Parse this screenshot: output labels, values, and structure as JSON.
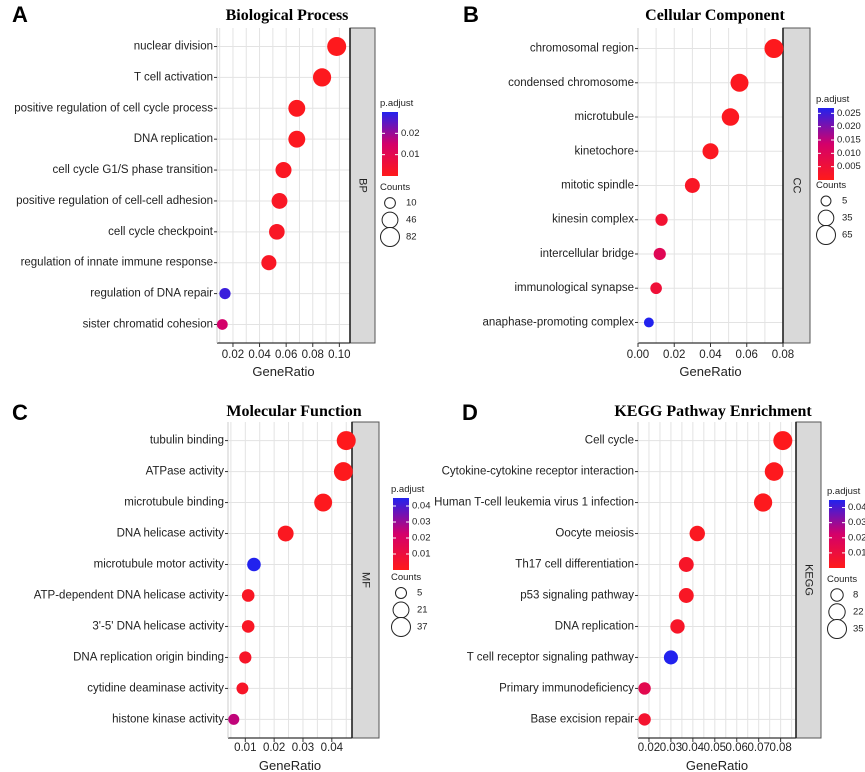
{
  "chart_data": [
    {
      "type": "scatter",
      "panel": "A",
      "title": "Biological Process",
      "xlabel": "GeneRatio",
      "facet": "BP",
      "xlim": [
        0.008,
        0.108
      ],
      "xticks": [
        0.02,
        0.04,
        0.06,
        0.08,
        0.1
      ],
      "xtick_labels": [
        "0.02",
        "0.04",
        "0.06",
        "0.08",
        "0.10"
      ],
      "categories": [
        "nuclear division",
        "T cell activation",
        "positive regulation of cell cycle process",
        "DNA replication",
        "cell cycle G1/S phase transition",
        "positive regulation of cell-cell adhesion",
        "cell cycle checkpoint",
        "regulation of innate immune response",
        "regulation of DNA repair",
        "sister chromatid cohesion"
      ],
      "gene_ratio": [
        0.098,
        0.087,
        0.068,
        0.068,
        0.058,
        0.055,
        0.053,
        0.047,
        0.014,
        0.012
      ],
      "counts": [
        82,
        72,
        57,
        57,
        48,
        46,
        44,
        39,
        12,
        10
      ],
      "p_adjust": [
        0.0005,
        0.0008,
        0.001,
        0.001,
        0.0015,
        0.002,
        0.002,
        0.002,
        0.028,
        0.015
      ],
      "legend": {
        "color_title": "p.adjust",
        "color_range": [
          0,
          0.03
        ],
        "color_ticks": [
          0.01,
          0.02
        ],
        "color_tick_labels": [
          "0.01",
          "0.02"
        ],
        "size_title": "Counts",
        "size_values": [
          10,
          46,
          82
        ],
        "size_labels": [
          "10",
          "46",
          "82"
        ]
      }
    },
    {
      "type": "scatter",
      "panel": "B",
      "title": "Cellular Component",
      "xlabel": "GeneRatio",
      "facet": "CC",
      "xlim": [
        0.0,
        0.08
      ],
      "xticks": [
        0.0,
        0.02,
        0.04,
        0.06,
        0.08
      ],
      "xtick_labels": [
        "0.00",
        "0.02",
        "0.04",
        "0.06",
        "0.08"
      ],
      "categories": [
        "chromosomal region",
        "condensed chromosome",
        "microtubule",
        "kinetochore",
        "mitotic spindle",
        "kinesin complex",
        "intercellular bridge",
        "immunological synapse",
        "anaphase-promoting complex"
      ],
      "gene_ratio": [
        0.075,
        0.056,
        0.051,
        0.04,
        0.03,
        0.013,
        0.012,
        0.01,
        0.006
      ],
      "counts": [
        65,
        55,
        50,
        38,
        30,
        14,
        14,
        11,
        5
      ],
      "p_adjust": [
        0.0005,
        0.0008,
        0.001,
        0.0012,
        0.002,
        0.004,
        0.01,
        0.005,
        0.027
      ],
      "legend": {
        "color_title": "p.adjust",
        "color_range": [
          0,
          0.027
        ],
        "color_ticks": [
          0.005,
          0.01,
          0.015,
          0.02,
          0.025
        ],
        "color_tick_labels": [
          "0.005",
          "0.010",
          "0.015",
          "0.020",
          "0.025"
        ],
        "size_title": "Counts",
        "size_values": [
          5,
          35,
          65
        ],
        "size_labels": [
          "5",
          "35",
          "65"
        ]
      }
    },
    {
      "type": "scatter",
      "panel": "C",
      "title": "Molecular Function",
      "xlabel": "GeneRatio",
      "facet": "MF",
      "xlim": [
        0.004,
        0.047
      ],
      "xticks": [
        0.01,
        0.02,
        0.03,
        0.04
      ],
      "xtick_labels": [
        "0.01",
        "0.02",
        "0.03",
        "0.04"
      ],
      "categories": [
        "tubulin binding",
        "ATPase activity",
        "microtubule binding",
        "DNA helicase activity",
        "microtubule motor activity",
        "ATP-dependent DNA helicase activity",
        "3'-5' DNA helicase activity",
        "DNA replication origin binding",
        "cytidine deaminase activity",
        "histone kinase activity"
      ],
      "gene_ratio": [
        0.045,
        0.044,
        0.037,
        0.024,
        0.013,
        0.011,
        0.011,
        0.01,
        0.009,
        0.006
      ],
      "counts": [
        37,
        36,
        31,
        21,
        12,
        9,
        9,
        8,
        7,
        5
      ],
      "p_adjust": [
        0.0005,
        0.0008,
        0.001,
        0.002,
        0.045,
        0.003,
        0.003,
        0.004,
        0.004,
        0.025
      ],
      "legend": {
        "color_title": "p.adjust",
        "color_range": [
          0,
          0.045
        ],
        "color_ticks": [
          0.01,
          0.02,
          0.03,
          0.04
        ],
        "color_tick_labels": [
          "0.01",
          "0.02",
          "0.03",
          "0.04"
        ],
        "size_title": "Counts",
        "size_values": [
          5,
          21,
          37
        ],
        "size_labels": [
          "5",
          "21",
          "37"
        ]
      }
    },
    {
      "type": "scatter",
      "panel": "D",
      "title": "KEGG Pathway Enrichment",
      "xlabel": "GeneRatio",
      "facet": "KEGG",
      "xlim": [
        0.015,
        0.087
      ],
      "xticks": [
        0.02,
        0.03,
        0.04,
        0.05,
        0.06,
        0.07,
        0.08
      ],
      "xtick_labels": [
        "0.02",
        "0.03",
        "0.04",
        "0.05",
        "0.06",
        "0.07",
        "0.08"
      ],
      "categories": [
        "Cell cycle",
        "Cytokine-cytokine receptor interaction",
        "Human T-cell leukemia virus 1 infection",
        "Oocyte meiosis",
        "Th17 cell differentiation",
        "p53 signaling pathway",
        "DNA replication",
        "T cell receptor signaling pathway",
        "Primary immunodeficiency",
        "Base excision repair"
      ],
      "gene_ratio": [
        0.081,
        0.077,
        0.072,
        0.042,
        0.037,
        0.037,
        0.033,
        0.03,
        0.018,
        0.018
      ],
      "counts": [
        35,
        33,
        31,
        18,
        16,
        16,
        14,
        13,
        8,
        8
      ],
      "p_adjust": [
        0.0005,
        0.001,
        0.001,
        0.002,
        0.004,
        0.003,
        0.004,
        0.045,
        0.015,
        0.006
      ],
      "legend": {
        "color_title": "p.adjust",
        "color_range": [
          0,
          0.045
        ],
        "color_ticks": [
          0.01,
          0.02,
          0.03,
          0.04
        ],
        "color_tick_labels": [
          "0.01",
          "0.02",
          "0.03",
          "0.04"
        ],
        "size_title": "Counts",
        "size_values": [
          8,
          22,
          35
        ],
        "size_labels": [
          "8",
          "22",
          "35"
        ]
      }
    }
  ],
  "colors": {
    "low": "#ff1a1a",
    "mid": "#d4006a",
    "high": "#2222ee",
    "grid": "#e3e3e3",
    "strip_fill": "#d9d9d9"
  }
}
